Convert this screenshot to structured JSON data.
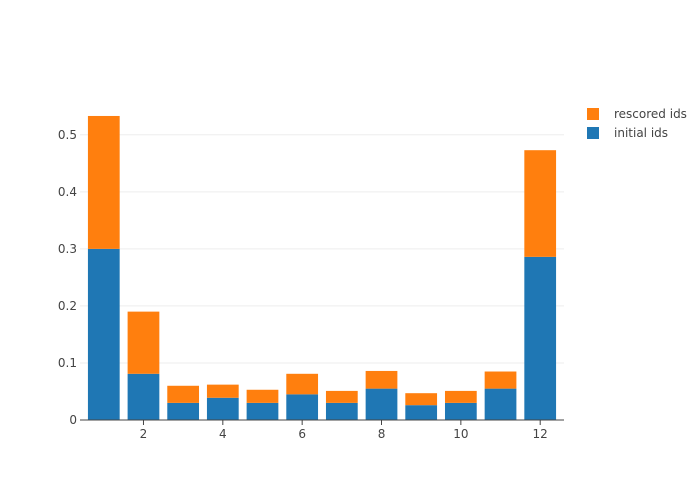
{
  "chart_data": {
    "type": "bar",
    "stacked": true,
    "x": [
      1,
      2,
      3,
      4,
      5,
      6,
      7,
      8,
      9,
      10,
      11,
      12
    ],
    "series": [
      {
        "name": "initial ids",
        "color": "#1f77b4",
        "values": [
          0.3,
          0.081,
          0.03,
          0.039,
          0.03,
          0.045,
          0.03,
          0.055,
          0.026,
          0.03,
          0.055,
          0.286
        ]
      },
      {
        "name": "rescored ids",
        "color": "#ff7f0e",
        "values": [
          0.233,
          0.109,
          0.03,
          0.023,
          0.023,
          0.036,
          0.021,
          0.031,
          0.021,
          0.021,
          0.03,
          0.187
        ]
      }
    ],
    "xticks": [
      2,
      4,
      6,
      8,
      10,
      12
    ],
    "xtick_labels": [
      "2",
      "4",
      "6",
      "8",
      "10",
      "12"
    ],
    "yticks": [
      0,
      0.1,
      0.2,
      0.3,
      0.4,
      0.5
    ],
    "ytick_labels": [
      "0",
      "0.1",
      "0.2",
      "0.3",
      "0.4",
      "0.5"
    ],
    "xlim": [
      0.4,
      12.6
    ],
    "ylim": [
      0,
      0.561
    ],
    "title": "",
    "xlabel": "",
    "ylabel": "",
    "grid": true,
    "legend_position": "top-right",
    "legend_order": [
      "rescored ids",
      "initial ids"
    ]
  }
}
